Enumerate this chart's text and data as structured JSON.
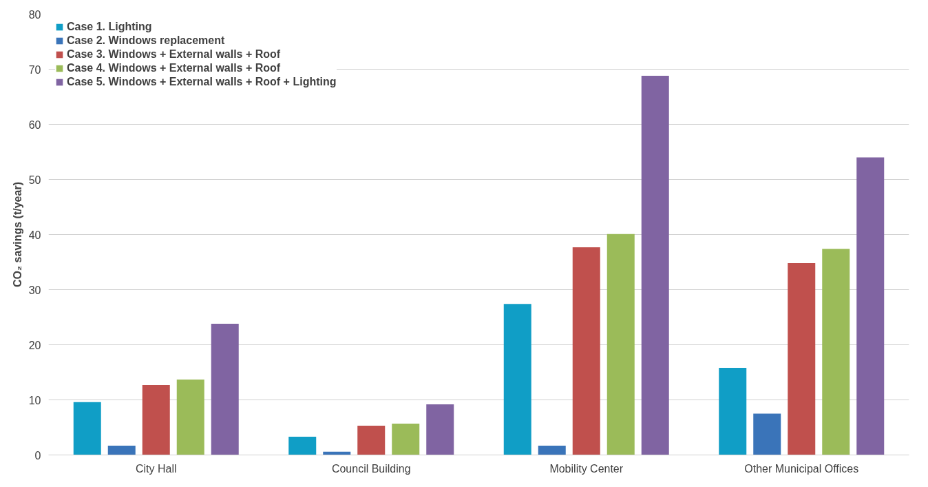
{
  "chart_data": {
    "type": "bar",
    "ylabel": "CO₂ savings (t/year)",
    "categories": [
      "City Hall",
      "Council Building",
      "Mobility Center",
      "Other Municipal Offices"
    ],
    "series": [
      {
        "name": "Case 1. Lighting",
        "color": "#109ec6",
        "values": [
          9.6,
          3.3,
          27.4,
          15.8
        ]
      },
      {
        "name": "Case 2. Windows replacement",
        "color": "#3a74b9",
        "values": [
          1.7,
          0.6,
          1.7,
          7.5
        ]
      },
      {
        "name": "Case 3. Windows + External walls + Roof",
        "color": "#c0504d",
        "values": [
          12.7,
          5.3,
          37.7,
          34.8
        ]
      },
      {
        "name": "Case 4. Windows + External walls + Roof",
        "color": "#9bbb59",
        "values": [
          13.7,
          5.7,
          40.1,
          37.4
        ]
      },
      {
        "name": "Case 5. Windows + External walls + Roof + Lighting",
        "color": "#8064a2",
        "values": [
          23.8,
          9.2,
          68.8,
          54.0
        ]
      }
    ],
    "ylim": [
      0,
      80
    ],
    "yticks": [
      0,
      10,
      20,
      30,
      40,
      50,
      60,
      70,
      80
    ],
    "grid": "y",
    "legend": "top left"
  }
}
